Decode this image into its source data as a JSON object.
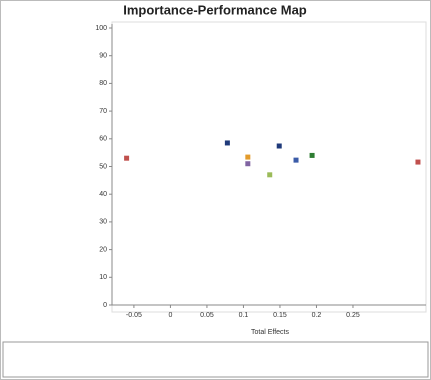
{
  "chart_data": {
    "type": "scatter",
    "title": "Importance-Performance Map",
    "x_label": "Total Effects",
    "x": [
      -0.06,
      0.078,
      0.106,
      0.106,
      0.136,
      0.149,
      0.172,
      0.194,
      0.339
    ],
    "values": [
      53,
      58.5,
      53.4,
      51,
      47,
      57.4,
      52.3,
      54,
      51.6
    ],
    "colors": [
      "#c0504d",
      "#1f3a7a",
      "#e39b2b",
      "#8064a2",
      "#9bbb59",
      "#1f3a7a",
      "#3b5ba8",
      "#2e7d32",
      "#c0504d"
    ],
    "xlim": [
      -0.08,
      0.35
    ],
    "xticks": [
      -0.05,
      0,
      0.05,
      0.1,
      0.15,
      0.2,
      0.25
    ],
    "ylim": [
      0,
      100
    ],
    "yticks": [
      0,
      10,
      20,
      30,
      40,
      50,
      60,
      70,
      80,
      90,
      100
    ]
  }
}
